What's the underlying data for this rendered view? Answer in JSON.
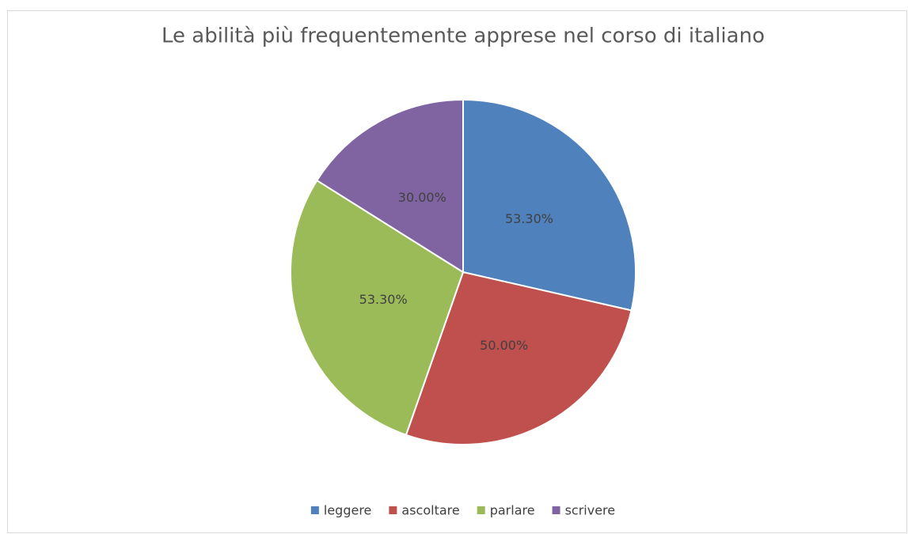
{
  "chart_data": {
    "type": "pie",
    "title": "Le abilità più frequentemente apprese nel corso di italiano",
    "categories": [
      "leggere",
      "ascoltare",
      "parlare",
      "scrivere"
    ],
    "values": [
      53.3,
      50,
      53.3,
      30
    ],
    "value_labels": [
      "53.30%",
      "50.00%",
      "53.30%",
      "30.00%"
    ],
    "colors": [
      "#4f81bd",
      "#c0504d",
      "#9bbb59",
      "#8064a2"
    ],
    "legend": "bottom"
  }
}
